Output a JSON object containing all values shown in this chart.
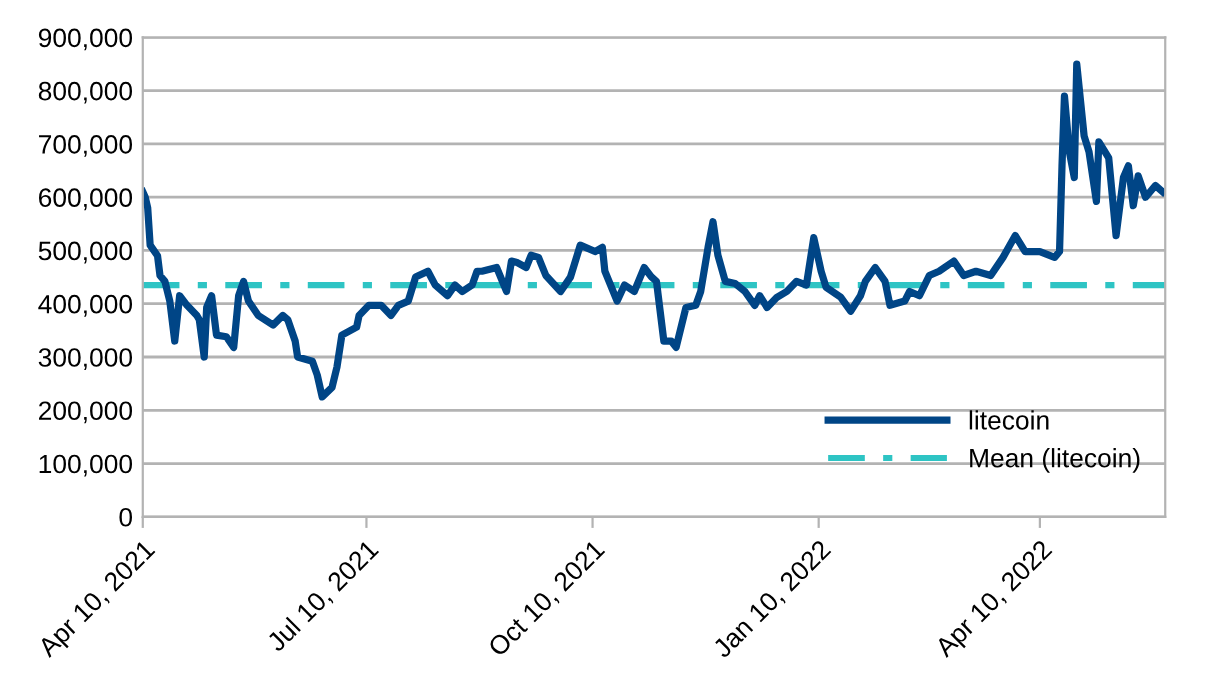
{
  "chart_data": {
    "type": "line",
    "x": [
      "2021-04-10",
      "2021-04-11",
      "2021-04-12",
      "2021-04-13",
      "2021-04-16",
      "2021-04-17",
      "2021-04-19",
      "2021-04-21",
      "2021-04-23",
      "2021-04-25",
      "2021-04-28",
      "2021-05-02",
      "2021-05-03",
      "2021-05-05",
      "2021-05-06",
      "2021-05-08",
      "2021-05-10",
      "2021-05-14",
      "2021-05-17",
      "2021-05-19",
      "2021-05-21",
      "2021-05-23",
      "2021-05-27",
      "2021-06-02",
      "2021-06-06",
      "2021-06-08",
      "2021-06-11",
      "2021-06-12",
      "2021-06-18",
      "2021-06-20",
      "2021-06-22",
      "2021-06-26",
      "2021-06-28",
      "2021-06-30",
      "2021-07-06",
      "2021-07-07",
      "2021-07-11",
      "2021-07-16",
      "2021-07-20",
      "2021-07-23",
      "2021-07-27",
      "2021-07-30",
      "2021-08-04",
      "2021-08-07",
      "2021-08-12",
      "2021-08-15",
      "2021-08-18",
      "2021-08-22",
      "2021-08-24",
      "2021-08-26",
      "2021-09-01",
      "2021-09-05",
      "2021-09-07",
      "2021-09-09",
      "2021-09-13",
      "2021-09-15",
      "2021-09-18",
      "2021-09-21",
      "2021-09-27",
      "2021-10-01",
      "2021-10-05",
      "2021-10-11",
      "2021-10-14",
      "2021-10-15",
      "2021-10-20",
      "2021-10-23",
      "2021-10-27",
      "2021-10-31",
      "2021-11-03",
      "2021-11-05",
      "2021-11-08",
      "2021-11-11",
      "2021-11-13",
      "2021-11-17",
      "2021-11-21",
      "2021-11-23",
      "2021-11-26",
      "2021-11-28",
      "2021-11-30",
      "2021-12-03",
      "2021-12-07",
      "2021-12-11",
      "2021-12-15",
      "2021-12-17",
      "2021-12-20",
      "2021-12-24",
      "2021-12-28",
      "2022-01-01",
      "2022-01-05",
      "2022-01-08",
      "2022-01-11",
      "2022-01-13",
      "2022-01-19",
      "2022-01-23",
      "2022-01-27",
      "2022-01-29",
      "2022-02-02",
      "2022-02-06",
      "2022-02-08",
      "2022-02-14",
      "2022-02-16",
      "2022-02-20",
      "2022-02-24",
      "2022-02-28",
      "2022-03-06",
      "2022-03-10",
      "2022-03-15",
      "2022-03-21",
      "2022-03-26",
      "2022-03-31",
      "2022-04-04",
      "2022-04-10",
      "2022-04-16",
      "2022-04-18",
      "2022-04-19",
      "2022-04-20",
      "2022-04-22",
      "2022-04-24",
      "2022-04-25",
      "2022-04-28",
      "2022-04-30",
      "2022-05-03",
      "2022-05-04",
      "2022-05-08",
      "2022-05-11",
      "2022-05-14",
      "2022-05-16",
      "2022-05-18",
      "2022-05-20",
      "2022-05-23",
      "2022-05-27",
      "2022-05-30"
    ],
    "series": [
      {
        "name": "litecoin",
        "color": "#004586",
        "values": [
          610000,
          600000,
          580000,
          510000,
          490000,
          453000,
          442000,
          405000,
          330000,
          415000,
          397000,
          378000,
          370000,
          300000,
          393000,
          415000,
          341000,
          338000,
          318000,
          415000,
          442000,
          405000,
          378000,
          360000,
          378000,
          370000,
          330000,
          300000,
          292000,
          266000,
          225000,
          243000,
          281000,
          341000,
          356000,
          378000,
          397000,
          397000,
          378000,
          397000,
          405000,
          450000,
          461000,
          435000,
          415000,
          435000,
          423000,
          435000,
          461000,
          461000,
          468000,
          423000,
          480000,
          478000,
          468000,
          491000,
          487000,
          453000,
          423000,
          450000,
          510000,
          498000,
          506000,
          461000,
          405000,
          435000,
          423000,
          468000,
          450000,
          442000,
          330000,
          330000,
          318000,
          393000,
          397000,
          423000,
          506000,
          554000,
          491000,
          442000,
          438000,
          423000,
          397000,
          415000,
          393000,
          412000,
          423000,
          442000,
          435000,
          524000,
          461000,
          431000,
          412000,
          386000,
          415000,
          442000,
          468000,
          442000,
          397000,
          405000,
          423000,
          415000,
          453000,
          461000,
          480000,
          453000,
          461000,
          453000,
          487000,
          528000,
          498000,
          498000,
          487000,
          498000,
          659000,
          790000,
          685000,
          637000,
          850000,
          715000,
          685000,
          592000,
          704000,
          674000,
          528000,
          637000,
          659000,
          584000,
          640000,
          600000,
          622000,
          610000
        ]
      }
    ],
    "ref_lines": [
      {
        "axis": "y",
        "value": 435000,
        "label": "Mean (litecoin)",
        "color": "#2ec4c4",
        "line_style": "dashdot"
      }
    ],
    "xlim": [
      "2021-04-10",
      "2022-05-31"
    ],
    "xticks": [
      {
        "value": "2021-04-10",
        "label": "Apr 10, 2021"
      },
      {
        "value": "2021-07-10",
        "label": "Jul 10, 2021"
      },
      {
        "value": "2021-10-10",
        "label": "Oct 10, 2021"
      },
      {
        "value": "2022-01-10",
        "label": "Jan 10, 2022"
      },
      {
        "value": "2022-04-10",
        "label": "Apr 10, 2022"
      }
    ],
    "ylim": [
      0,
      900000
    ],
    "yticks": [
      0,
      {
        "value": 100000,
        "label": "100,000"
      },
      {
        "value": 200000,
        "label": "200,000"
      },
      {
        "value": 300000,
        "label": "300,000"
      },
      {
        "value": 400000,
        "label": "400,000"
      },
      {
        "value": 500000,
        "label": "500,000"
      },
      {
        "value": 600000,
        "label": "600,000"
      },
      {
        "value": 700000,
        "label": "700,000"
      },
      {
        "value": 800000,
        "label": "800,000"
      },
      {
        "value": 900000,
        "label": "900,000"
      }
    ],
    "grid": "y",
    "legend": "bottom right"
  }
}
